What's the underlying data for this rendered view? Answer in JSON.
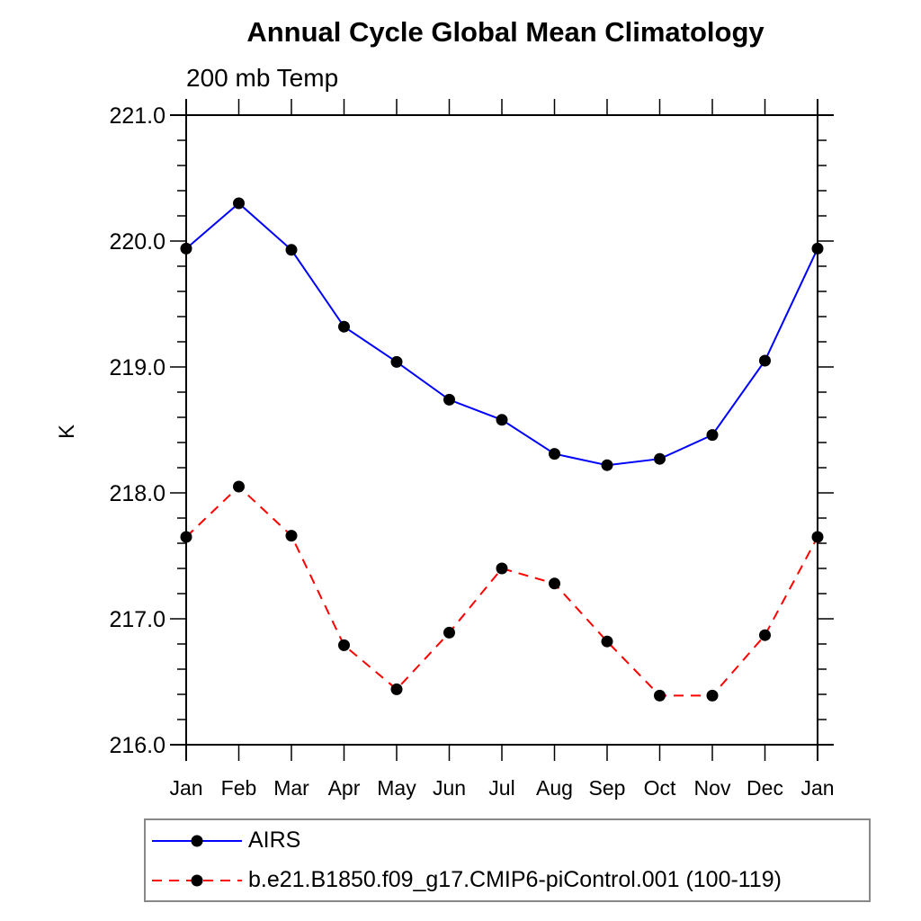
{
  "chart_data": {
    "type": "line",
    "title": "Annual Cycle Global Mean Climatology",
    "subtitle": "200 mb Temp",
    "ylabel": "K",
    "xlabel": "",
    "grid": false,
    "legend_position": "bottom-left",
    "ylim": [
      216.0,
      221.0
    ],
    "ytick_major_step": 1.0,
    "ytick_minor_step": 0.2,
    "ytick_labels": [
      "216.0",
      "217.0",
      "218.0",
      "219.0",
      "220.0",
      "221.0"
    ],
    "categories": [
      "Jan",
      "Feb",
      "Mar",
      "Apr",
      "May",
      "Jun",
      "Jul",
      "Aug",
      "Sep",
      "Oct",
      "Nov",
      "Dec",
      "Jan"
    ],
    "series": [
      {
        "name": "AIRS",
        "color": "#0000ff",
        "line_style": "solid",
        "marker": "filled-circle",
        "marker_color": "#000000",
        "values": [
          219.94,
          220.3,
          219.93,
          219.32,
          219.04,
          218.74,
          218.58,
          218.31,
          218.22,
          218.27,
          218.46,
          219.05,
          219.94
        ]
      },
      {
        "name": "b.e21.B1850.f09_g17.CMIP6-piControl.001 (100-119)",
        "color": "#ff0000",
        "line_style": "dashed",
        "marker": "filled-circle",
        "marker_color": "#000000",
        "values": [
          217.65,
          218.05,
          217.66,
          216.79,
          216.44,
          216.89,
          217.4,
          217.28,
          216.82,
          216.39,
          216.39,
          216.87,
          217.65
        ]
      }
    ]
  }
}
